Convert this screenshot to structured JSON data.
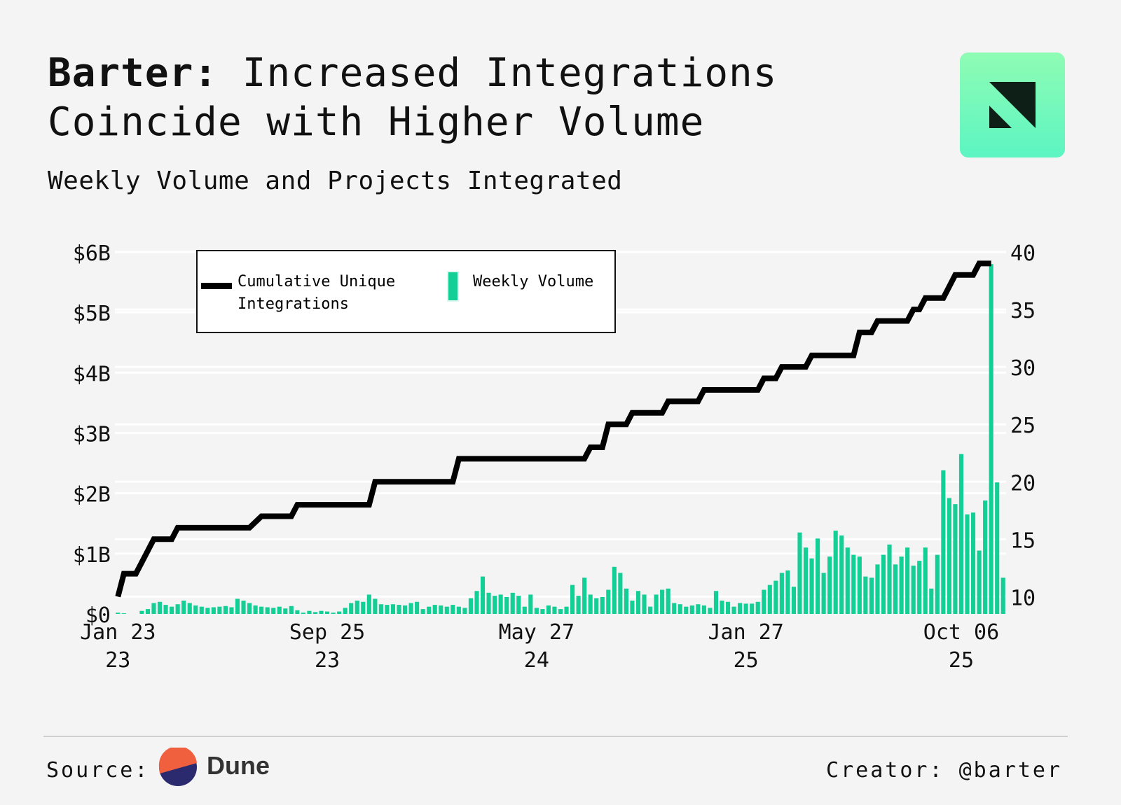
{
  "header": {
    "title_bold": "Barter:",
    "title_rest": " Increased Integrations",
    "title_line2": "Coincide with Higher Volume",
    "subtitle": "Weekly Volume and Projects Integrated"
  },
  "logo": {
    "icon": "barter-logo-icon",
    "colors": {
      "bg_top": "#8ffcb4",
      "bg_bottom": "#5cf5c2",
      "mark": "#0d1f17"
    }
  },
  "footer": {
    "source_label": "Source:",
    "source_name": "Dune",
    "source_icon": "dune-logo-icon",
    "creator": "Creator: @barter"
  },
  "chart_data": {
    "type": "bar+line",
    "title": "Weekly Volume and Projects Integrated",
    "legend": {
      "placement": "top-left",
      "line_label_1": "Cumulative Unique",
      "line_label_2": "Integrations",
      "bar_label": "Weekly Volume"
    },
    "colors": {
      "bar": "#14cf95",
      "line": "#000000",
      "grid": "#ffffff"
    },
    "x_ticks": [
      {
        "index": 0,
        "line1": "Jan 23",
        "line2": "23"
      },
      {
        "index": 35,
        "line1": "Sep 25",
        "line2": "23"
      },
      {
        "index": 70,
        "line1": "May 27",
        "line2": "24"
      },
      {
        "index": 105,
        "line1": "Jan 27",
        "line2": "25"
      },
      {
        "index": 141,
        "line1": "Oct 06",
        "line2": "25"
      }
    ],
    "y_left": {
      "label": "Weekly Volume",
      "min": 0,
      "max": 6,
      "unit": "B USD",
      "ticks": [
        "$0",
        "$1B",
        "$2B",
        "$3B",
        "$4B",
        "$5B",
        "$6B"
      ]
    },
    "y_right": {
      "label": "Cumulative Unique Integrations",
      "min": 8.5,
      "max": 40,
      "ticks": [
        "10",
        "15",
        "20",
        "25",
        "30",
        "35",
        "40"
      ]
    },
    "weekly_volume_billions": [
      0.02,
      0.01,
      0,
      0,
      0.05,
      0.08,
      0.18,
      0.2,
      0.15,
      0.12,
      0.16,
      0.22,
      0.18,
      0.14,
      0.12,
      0.1,
      0.11,
      0.12,
      0.13,
      0.11,
      0.25,
      0.22,
      0.18,
      0.14,
      0.12,
      0.11,
      0.1,
      0.12,
      0.09,
      0.13,
      0.06,
      0.02,
      0.05,
      0.03,
      0.05,
      0.04,
      0.02,
      0.04,
      0.1,
      0.18,
      0.22,
      0.2,
      0.32,
      0.25,
      0.16,
      0.15,
      0.16,
      0.15,
      0.14,
      0.18,
      0.2,
      0.08,
      0.12,
      0.15,
      0.14,
      0.12,
      0.15,
      0.12,
      0.1,
      0.26,
      0.38,
      0.62,
      0.35,
      0.3,
      0.32,
      0.28,
      0.35,
      0.3,
      0.12,
      0.32,
      0.1,
      0.08,
      0.14,
      0.12,
      0.08,
      0.12,
      0.48,
      0.3,
      0.6,
      0.32,
      0.26,
      0.28,
      0.4,
      0.78,
      0.68,
      0.42,
      0.22,
      0.38,
      0.32,
      0.12,
      0.32,
      0.4,
      0.42,
      0.18,
      0.16,
      0.12,
      0.14,
      0.16,
      0.14,
      0.1,
      0.38,
      0.22,
      0.2,
      0.12,
      0.18,
      0.17,
      0.17,
      0.2,
      0.4,
      0.48,
      0.55,
      0.68,
      0.72,
      0.45,
      1.35,
      1.1,
      0.92,
      1.25,
      0.68,
      0.95,
      1.38,
      1.3,
      1.1,
      0.98,
      0.95,
      0.62,
      0.6,
      0.82,
      0.98,
      1.15,
      0.82,
      0.95,
      1.1,
      0.8,
      0.88,
      1.1,
      0.42,
      0.98,
      2.38,
      1.92,
      1.82,
      2.65,
      1.65,
      1.68,
      1.05,
      1.88,
      5.8,
      2.18,
      0.6
    ],
    "cumulative_integrations_steps": [
      {
        "index": 0,
        "value": 10
      },
      {
        "index": 1,
        "value": 12
      },
      {
        "index": 3,
        "value": 12
      },
      {
        "index": 5,
        "value": 14
      },
      {
        "index": 6,
        "value": 15
      },
      {
        "index": 9,
        "value": 15
      },
      {
        "index": 10,
        "value": 16
      },
      {
        "index": 22,
        "value": 16
      },
      {
        "index": 24,
        "value": 17
      },
      {
        "index": 29,
        "value": 17
      },
      {
        "index": 30,
        "value": 18
      },
      {
        "index": 42,
        "value": 18
      },
      {
        "index": 43,
        "value": 20
      },
      {
        "index": 56,
        "value": 20
      },
      {
        "index": 57,
        "value": 22
      },
      {
        "index": 78,
        "value": 22
      },
      {
        "index": 79,
        "value": 23
      },
      {
        "index": 81,
        "value": 23
      },
      {
        "index": 82,
        "value": 25
      },
      {
        "index": 85,
        "value": 25
      },
      {
        "index": 86,
        "value": 26
      },
      {
        "index": 91,
        "value": 26
      },
      {
        "index": 92,
        "value": 27
      },
      {
        "index": 97,
        "value": 27
      },
      {
        "index": 98,
        "value": 28
      },
      {
        "index": 107,
        "value": 28
      },
      {
        "index": 108,
        "value": 29
      },
      {
        "index": 110,
        "value": 29
      },
      {
        "index": 111,
        "value": 30
      },
      {
        "index": 115,
        "value": 30
      },
      {
        "index": 116,
        "value": 31
      },
      {
        "index": 123,
        "value": 31
      },
      {
        "index": 124,
        "value": 33
      },
      {
        "index": 126,
        "value": 33
      },
      {
        "index": 127,
        "value": 34
      },
      {
        "index": 132,
        "value": 34
      },
      {
        "index": 133,
        "value": 35
      },
      {
        "index": 134,
        "value": 35
      },
      {
        "index": 135,
        "value": 36
      },
      {
        "index": 138,
        "value": 36
      },
      {
        "index": 140,
        "value": 38
      },
      {
        "index": 143,
        "value": 38
      },
      {
        "index": 144,
        "value": 39
      },
      {
        "index": 146,
        "value": 39
      }
    ]
  }
}
